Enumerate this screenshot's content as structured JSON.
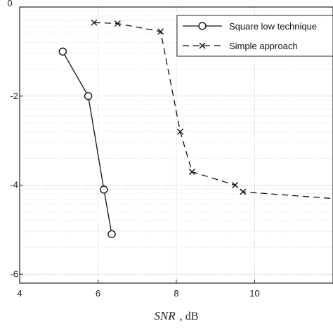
{
  "chart_data": {
    "type": "line",
    "xlabel_var": "SNR",
    "xlabel_unit": ", dB",
    "ylabel": "",
    "xlim": [
      4,
      12
    ],
    "ylim": [
      -6.2,
      0
    ],
    "log_y": true,
    "grid": true,
    "legend_position": "top-right",
    "x_ticks": [
      4,
      6,
      8,
      10
    ],
    "x_tick_labels": [
      "4",
      "6",
      "8",
      "10"
    ],
    "y_ticks": [
      -2,
      -4,
      -6
    ],
    "y_tick_labels": [
      "-2",
      "-4",
      "-6"
    ],
    "y_top_label": "0",
    "series": [
      {
        "name": "Square low technique",
        "marker": "circle",
        "dash": "solid",
        "x": [
          5.1,
          5.75,
          6.15,
          6.35
        ],
        "y": [
          -1.0,
          -2.0,
          -4.1,
          -5.1
        ]
      },
      {
        "name": "Simple approach",
        "marker": "x",
        "dash": "dashed",
        "x": [
          5.9,
          6.5,
          7.6,
          8.1,
          8.4,
          9.5,
          9.7,
          12.0
        ],
        "y": [
          -0.35,
          -0.37,
          -0.55,
          -2.8,
          -3.7,
          -4.0,
          -4.15,
          -4.3
        ]
      }
    ]
  }
}
